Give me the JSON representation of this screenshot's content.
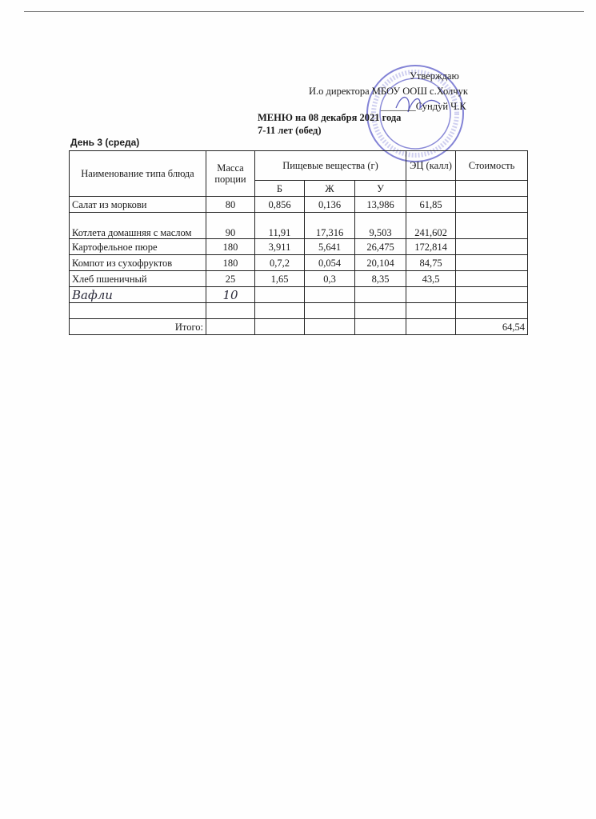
{
  "approval": {
    "approve": "Утверждаю",
    "position": "И.о директора МБОУ ООШ с.Холчук",
    "signature_line": "_______Сундуй Ч.К"
  },
  "stamp": {
    "text": "ООШ С.ХОЛЧУК",
    "color": "#5a5ac8"
  },
  "title": "МЕНЮ на 08 декабря 2021 года",
  "subtitle": "7-11 лет (обед)",
  "day": "День 3 (среда)",
  "table": {
    "headers": {
      "name": "Наименование типа блюда",
      "mass": "Масса порции",
      "nutrients": "Пищевые вещества (г)",
      "b": "Б",
      "zh": "Ж",
      "u": "У",
      "energy": "ЭЦ (калл)",
      "cost": "Стоимость"
    },
    "rows": [
      {
        "name": "Салат из моркови",
        "mass": "80",
        "b": "0,856",
        "zh": "0,136",
        "u": "13,986",
        "energy": "61,85",
        "cost": ""
      },
      {
        "name": "Котлета домашняя с маслом",
        "mass": "90",
        "b": "11,91",
        "zh": "17,316",
        "u": "9,503",
        "energy": "241,602",
        "cost": ""
      },
      {
        "name": "Картофельное пюре",
        "mass": "180",
        "b": "3,911",
        "zh": "5,641",
        "u": "26,475",
        "energy": "172,814",
        "cost": ""
      },
      {
        "name": "Компот из сухофруктов",
        "mass": "180",
        "b": "0,7,2",
        "zh": "0,054",
        "u": "20,104",
        "energy": "84,75",
        "cost": ""
      },
      {
        "name": "Хлеб пшеничный",
        "mass": "25",
        "b": "1,65",
        "zh": "0,3",
        "u": "8,35",
        "energy": "43,5",
        "cost": ""
      },
      {
        "name": "Вафли",
        "mass": "10",
        "b": "",
        "zh": "",
        "u": "",
        "energy": "",
        "cost": ""
      },
      {
        "name": "",
        "mass": "",
        "b": "",
        "zh": "",
        "u": "",
        "energy": "",
        "cost": ""
      }
    ],
    "total_label": "Итого:",
    "total_cost": "64,54"
  }
}
